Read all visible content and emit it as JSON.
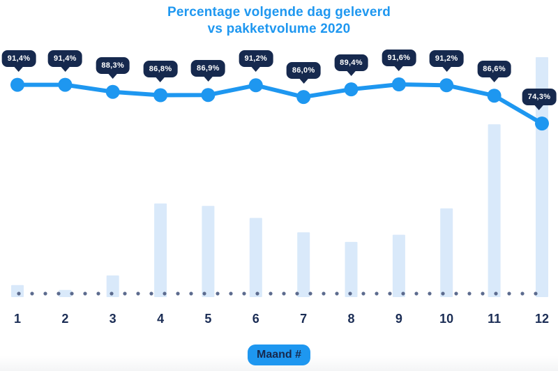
{
  "title": {
    "line1": "Percentage volgende dag geleverd",
    "line2": "vs pakketvolume 2020"
  },
  "colors": {
    "accent_blue": "#1e97f0",
    "navy": "#16294e",
    "bar_fill": "#d9e9fa",
    "baseline_dot": "#5c6b8e",
    "badge_text": "#ffffff"
  },
  "x_axis": {
    "label": "Maand #",
    "ticks": [
      "1",
      "2",
      "3",
      "4",
      "5",
      "6",
      "7",
      "8",
      "9",
      "10",
      "11",
      "12"
    ]
  },
  "chart_data": {
    "type": "line",
    "title": "Percentage volgende dag geleverd vs pakketvolume 2020",
    "categories": [
      1,
      2,
      3,
      4,
      5,
      6,
      7,
      8,
      9,
      10,
      11,
      12
    ],
    "xlabel": "Maand #",
    "legend_position": "none",
    "grid": "dotted-baseline-only",
    "series": [
      {
        "name": "Percentage volgende dag geleverd",
        "type": "line",
        "unit": "%",
        "values": [
          91.4,
          91.4,
          88.3,
          86.8,
          86.9,
          91.2,
          86.0,
          89.4,
          91.6,
          91.2,
          86.6,
          74.3
        ],
        "point_labels": [
          "91,4%",
          "91,4%",
          "88,3%",
          "86,8%",
          "86,9%",
          "91,2%",
          "86,0%",
          "89,4%",
          "91,6%",
          "91,2%",
          "86,6%",
          "74,3%"
        ]
      },
      {
        "name": "Pakketvolume 2020",
        "type": "bar",
        "unit": "relative index (max month = 100)",
        "values": [
          5,
          3,
          9,
          39,
          38,
          33,
          27,
          23,
          26,
          37,
          72,
          100
        ]
      }
    ]
  }
}
